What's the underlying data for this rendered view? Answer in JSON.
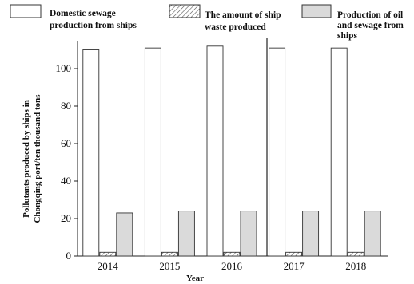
{
  "chart_data": {
    "type": "bar",
    "categories": [
      "2014",
      "2015",
      "2016",
      "2017",
      "2018"
    ],
    "series": [
      {
        "name": "Domestic sewage production from ships",
        "values": [
          110,
          111,
          112,
          111,
          111
        ],
        "pattern": "blank",
        "color": "#ffffff"
      },
      {
        "name": "The amount of ship waste produced",
        "values": [
          2,
          2,
          2,
          2,
          2
        ],
        "pattern": "hatched",
        "color": "#ffffff"
      },
      {
        "name": "Production of oil and sewage from ships",
        "values": [
          23,
          24,
          24,
          24,
          24
        ],
        "pattern": "solid",
        "color": "#dadada"
      }
    ],
    "xlabel": "Year",
    "ylabel": [
      "Pollutants produced by ships in",
      "Chongqing port/ten thousand tons"
    ],
    "yticks": [
      0,
      20,
      40,
      60,
      80,
      100
    ],
    "ylim": [
      0,
      120
    ],
    "grid": false,
    "legend_position": "top"
  },
  "legend": {
    "items": [
      {
        "lines": [
          "Domestic sewage",
          "production from ships"
        ]
      },
      {
        "lines": [
          "The amount of ship",
          "waste produced"
        ]
      },
      {
        "lines": [
          "Production of oil",
          "and sewage from",
          "ships"
        ]
      }
    ]
  }
}
